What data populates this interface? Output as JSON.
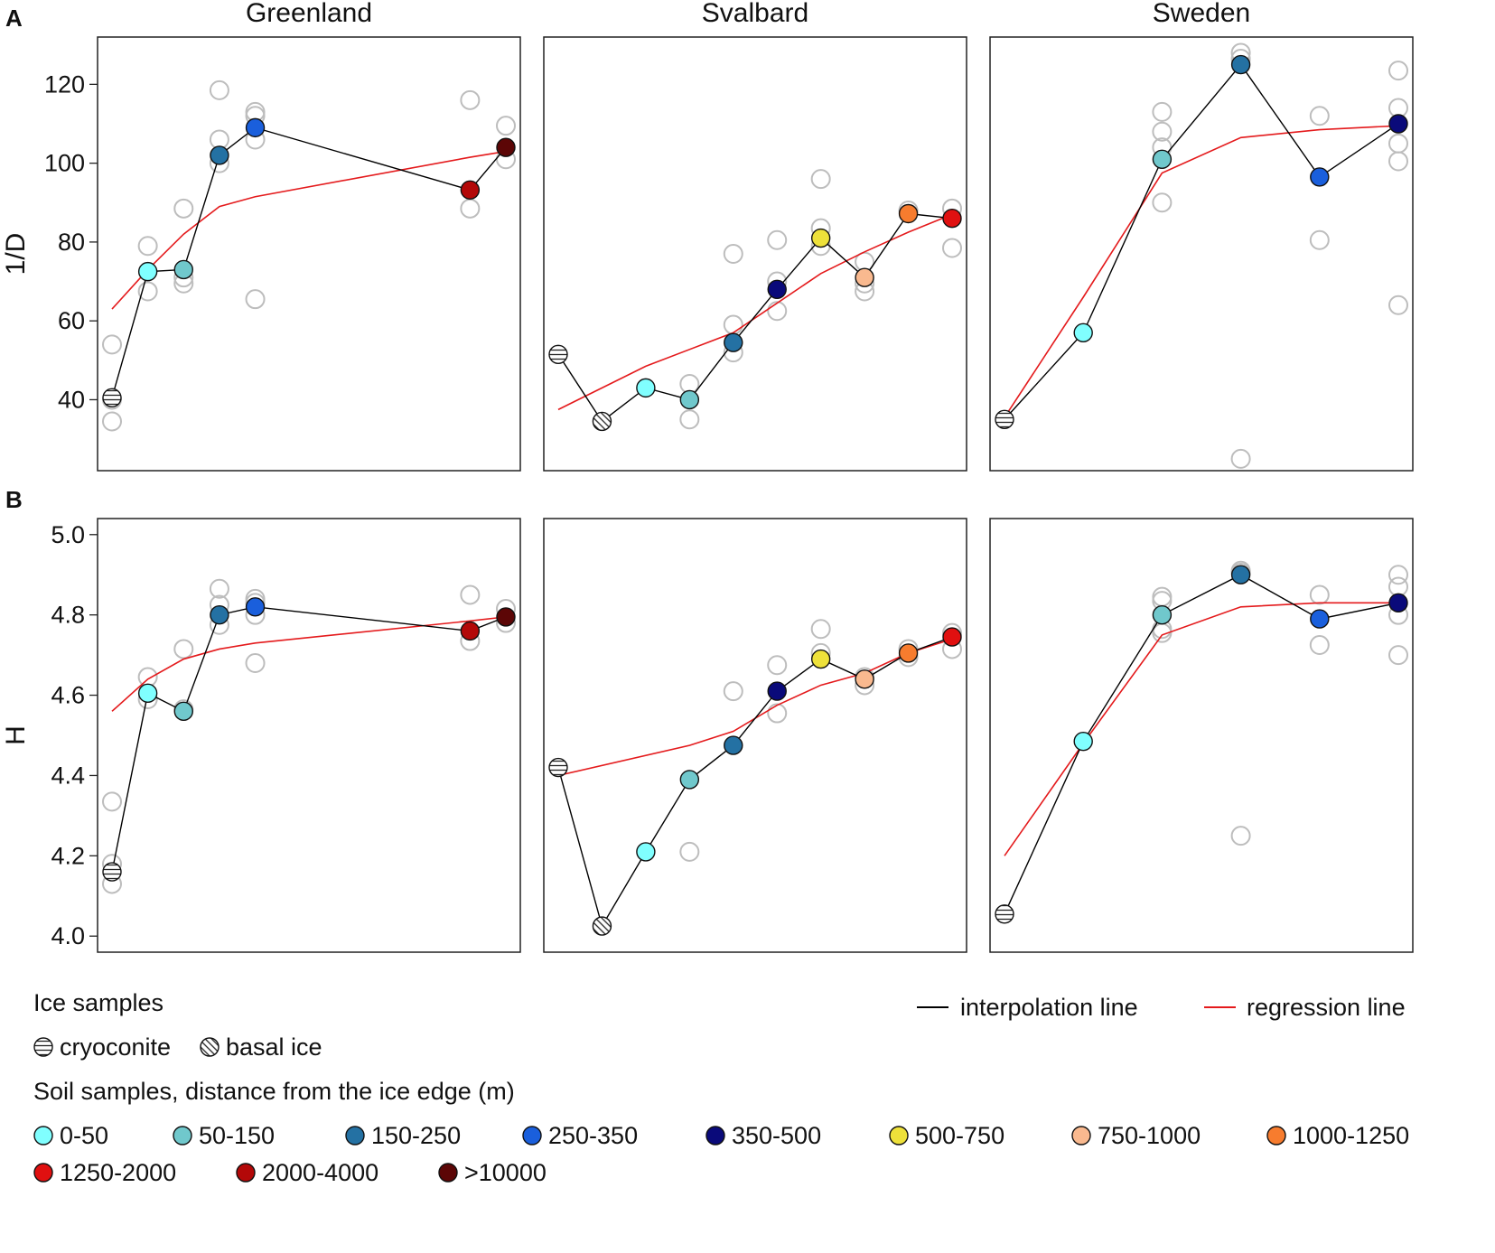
{
  "chart_data": {
    "type": "scatter",
    "title": "",
    "columns": [
      "Greenland",
      "Svalbard",
      "Sweden"
    ],
    "series_order": [
      "cryoconite",
      "basal ice",
      "0-50",
      "50-150",
      "150-250",
      "250-350",
      "350-500",
      "500-750",
      "750-1000",
      "1000-1250",
      "1250-2000",
      "2000-4000",
      ">10000"
    ],
    "colors": {
      "0-50": "#80ffff",
      "50-150": "#70c8cc",
      "150-250": "#2471a3",
      "250-350": "#1a5fdc",
      "350-500": "#0a0a7a",
      "500-750": "#eee13a",
      "750-1000": "#f9b98f",
      "1000-1250": "#f77c2e",
      "1250-2000": "#e01010",
      "2000-4000": "#b30808",
      ">10000": "#5c0606"
    },
    "line_colors": {
      "interpolation": "#000000",
      "regression": "#e41a1c",
      "replicate": "#bdbdbd"
    },
    "rows": [
      {
        "letter": "A",
        "ylabel": "1/D",
        "ylim": [
          22,
          132
        ],
        "yticks": [
          40,
          60,
          80,
          100,
          120
        ],
        "panels": [
          {
            "site": "Greenland",
            "means": [
              {
                "cat": "cryoconite",
                "x": 0,
                "y": 40.5
              },
              {
                "cat": "0-50",
                "x": 1,
                "y": 72.5
              },
              {
                "cat": "50-150",
                "x": 2,
                "y": 73
              },
              {
                "cat": "150-250",
                "x": 3,
                "y": 102
              },
              {
                "cat": "250-350",
                "x": 4,
                "y": 109
              },
              {
                "cat": "2000-4000",
                "x": 10,
                "y": 93.2
              },
              {
                "cat": ">10000",
                "x": 11,
                "y": 104
              }
            ],
            "replicates": [
              {
                "x": 0,
                "y": 54
              },
              {
                "x": 0,
                "y": 40
              },
              {
                "x": 0,
                "y": 34.5
              },
              {
                "x": 1,
                "y": 79
              },
              {
                "x": 1,
                "y": 67.5
              },
              {
                "x": 2,
                "y": 88.5
              },
              {
                "x": 2,
                "y": 71
              },
              {
                "x": 2,
                "y": 69.5
              },
              {
                "x": 3,
                "y": 118.5
              },
              {
                "x": 3,
                "y": 106
              },
              {
                "x": 3,
                "y": 100
              },
              {
                "x": 4,
                "y": 113
              },
              {
                "x": 4,
                "y": 112
              },
              {
                "x": 4,
                "y": 106
              },
              {
                "x": 4,
                "y": 65.5
              },
              {
                "x": 10,
                "y": 116
              },
              {
                "x": 10,
                "y": 88.5
              },
              {
                "x": 11,
                "y": 109.5
              },
              {
                "x": 11,
                "y": 101
              }
            ],
            "regression": [
              [
                0,
                63
              ],
              [
                1,
                73
              ],
              [
                2,
                82
              ],
              [
                3,
                89
              ],
              [
                4,
                91.5
              ],
              [
                10,
                101.5
              ],
              [
                11,
                103
              ]
            ]
          },
          {
            "site": "Svalbard",
            "means": [
              {
                "cat": "cryoconite",
                "x": 0,
                "y": 51.5
              },
              {
                "cat": "basal ice",
                "x": 1,
                "y": 34.5
              },
              {
                "cat": "0-50",
                "x": 2,
                "y": 43
              },
              {
                "cat": "50-150",
                "x": 3,
                "y": 40
              },
              {
                "cat": "150-250",
                "x": 4,
                "y": 54.5
              },
              {
                "cat": "350-500",
                "x": 5,
                "y": 68
              },
              {
                "cat": "500-750",
                "x": 6,
                "y": 81
              },
              {
                "cat": "750-1000",
                "x": 7,
                "y": 71
              },
              {
                "cat": "1000-1250",
                "x": 8,
                "y": 87.2
              },
              {
                "cat": "1250-2000",
                "x": 9,
                "y": 86
              }
            ],
            "replicates": [
              {
                "x": 3,
                "y": 44
              },
              {
                "x": 3,
                "y": 35
              },
              {
                "x": 4,
                "y": 77
              },
              {
                "x": 4,
                "y": 59
              },
              {
                "x": 4,
                "y": 52
              },
              {
                "x": 5,
                "y": 80.5
              },
              {
                "x": 5,
                "y": 70
              },
              {
                "x": 5,
                "y": 62.5
              },
              {
                "x": 6,
                "y": 96
              },
              {
                "x": 6,
                "y": 83.5
              },
              {
                "x": 6,
                "y": 79
              },
              {
                "x": 7,
                "y": 75
              },
              {
                "x": 7,
                "y": 69.5
              },
              {
                "x": 7,
                "y": 67.5
              },
              {
                "x": 8,
                "y": 88
              },
              {
                "x": 9,
                "y": 88.5
              },
              {
                "x": 9,
                "y": 78.5
              }
            ],
            "regression": [
              [
                0,
                37.5
              ],
              [
                2,
                48.5
              ],
              [
                4,
                57
              ],
              [
                5,
                64.5
              ],
              [
                6,
                72
              ],
              [
                7,
                77.5
              ],
              [
                8,
                82.5
              ],
              [
                9,
                87
              ]
            ]
          },
          {
            "site": "Sweden",
            "means": [
              {
                "cat": "cryoconite",
                "x": 0,
                "y": 35
              },
              {
                "cat": "0-50",
                "x": 1,
                "y": 57
              },
              {
                "cat": "50-150",
                "x": 2,
                "y": 101
              },
              {
                "cat": "150-250",
                "x": 3,
                "y": 125
              },
              {
                "cat": "250-350",
                "x": 4,
                "y": 96.5
              },
              {
                "cat": "350-500",
                "x": 5,
                "y": 110
              }
            ],
            "replicates": [
              {
                "x": 2,
                "y": 113
              },
              {
                "x": 2,
                "y": 108
              },
              {
                "x": 2,
                "y": 104
              },
              {
                "x": 2,
                "y": 90
              },
              {
                "x": 3,
                "y": 128
              },
              {
                "x": 3,
                "y": 126.5
              },
              {
                "x": 3,
                "y": 25
              },
              {
                "x": 4,
                "y": 112
              },
              {
                "x": 4,
                "y": 80.5
              },
              {
                "x": 5,
                "y": 123.5
              },
              {
                "x": 5,
                "y": 114
              },
              {
                "x": 5,
                "y": 105
              },
              {
                "x": 5,
                "y": 100.5
              },
              {
                "x": 5,
                "y": 64
              }
            ],
            "regression": [
              [
                0,
                35.5
              ],
              [
                1,
                66
              ],
              [
                2,
                97.5
              ],
              [
                3,
                106.5
              ],
              [
                4,
                108.5
              ],
              [
                5,
                109.5
              ]
            ]
          }
        ]
      },
      {
        "letter": "B",
        "ylabel": "H",
        "ylim": [
          3.96,
          5.04
        ],
        "yticks": [
          4.0,
          4.2,
          4.4,
          4.6,
          4.8,
          5.0
        ],
        "panels": [
          {
            "site": "Greenland",
            "means": [
              {
                "cat": "cryoconite",
                "x": 0,
                "y": 4.16
              },
              {
                "cat": "0-50",
                "x": 1,
                "y": 4.605
              },
              {
                "cat": "50-150",
                "x": 2,
                "y": 4.56
              },
              {
                "cat": "150-250",
                "x": 3,
                "y": 4.8
              },
              {
                "cat": "250-350",
                "x": 4,
                "y": 4.82
              },
              {
                "cat": "2000-4000",
                "x": 10,
                "y": 4.76
              },
              {
                "cat": ">10000",
                "x": 11,
                "y": 4.795
              }
            ],
            "replicates": [
              {
                "x": 0,
                "y": 4.335
              },
              {
                "x": 0,
                "y": 4.18
              },
              {
                "x": 0,
                "y": 4.13
              },
              {
                "x": 1,
                "y": 4.645
              },
              {
                "x": 1,
                "y": 4.59
              },
              {
                "x": 2,
                "y": 4.715
              },
              {
                "x": 2,
                "y": 4.565
              },
              {
                "x": 3,
                "y": 4.865
              },
              {
                "x": 3,
                "y": 4.825
              },
              {
                "x": 3,
                "y": 4.775
              },
              {
                "x": 4,
                "y": 4.84
              },
              {
                "x": 4,
                "y": 4.83
              },
              {
                "x": 4,
                "y": 4.8
              },
              {
                "x": 4,
                "y": 4.68
              },
              {
                "x": 10,
                "y": 4.85
              },
              {
                "x": 10,
                "y": 4.735
              },
              {
                "x": 11,
                "y": 4.815
              },
              {
                "x": 11,
                "y": 4.78
              }
            ],
            "regression": [
              [
                0,
                4.56
              ],
              [
                1,
                4.64
              ],
              [
                2,
                4.69
              ],
              [
                3,
                4.715
              ],
              [
                4,
                4.73
              ],
              [
                10,
                4.785
              ],
              [
                11,
                4.795
              ]
            ]
          },
          {
            "site": "Svalbard",
            "means": [
              {
                "cat": "cryoconite",
                "x": 0,
                "y": 4.42
              },
              {
                "cat": "basal ice",
                "x": 1,
                "y": 4.025
              },
              {
                "cat": "0-50",
                "x": 2,
                "y": 4.21
              },
              {
                "cat": "50-150",
                "x": 3,
                "y": 4.39
              },
              {
                "cat": "150-250",
                "x": 4,
                "y": 4.475
              },
              {
                "cat": "350-500",
                "x": 5,
                "y": 4.61
              },
              {
                "cat": "500-750",
                "x": 6,
                "y": 4.69
              },
              {
                "cat": "750-1000",
                "x": 7,
                "y": 4.64
              },
              {
                "cat": "1000-1250",
                "x": 8,
                "y": 4.705
              },
              {
                "cat": "1250-2000",
                "x": 9,
                "y": 4.745
              }
            ],
            "replicates": [
              {
                "x": 3,
                "y": 4.21
              },
              {
                "x": 4,
                "y": 4.61
              },
              {
                "x": 5,
                "y": 4.675
              },
              {
                "x": 5,
                "y": 4.555
              },
              {
                "x": 6,
                "y": 4.765
              },
              {
                "x": 6,
                "y": 4.705
              },
              {
                "x": 7,
                "y": 4.645
              },
              {
                "x": 7,
                "y": 4.625
              },
              {
                "x": 8,
                "y": 4.715
              },
              {
                "x": 8,
                "y": 4.695
              },
              {
                "x": 9,
                "y": 4.755
              },
              {
                "x": 9,
                "y": 4.715
              }
            ],
            "regression": [
              [
                0,
                4.4
              ],
              [
                3,
                4.475
              ],
              [
                4,
                4.51
              ],
              [
                5,
                4.575
              ],
              [
                6,
                4.625
              ],
              [
                7,
                4.655
              ],
              [
                8,
                4.705
              ],
              [
                9,
                4.74
              ]
            ]
          },
          {
            "site": "Sweden",
            "means": [
              {
                "cat": "cryoconite",
                "x": 0,
                "y": 4.055
              },
              {
                "cat": "0-50",
                "x": 1,
                "y": 4.485
              },
              {
                "cat": "50-150",
                "x": 2,
                "y": 4.8
              },
              {
                "cat": "150-250",
                "x": 3,
                "y": 4.9
              },
              {
                "cat": "250-350",
                "x": 4,
                "y": 4.79
              },
              {
                "cat": "350-500",
                "x": 5,
                "y": 4.83
              }
            ],
            "replicates": [
              {
                "x": 2,
                "y": 4.845
              },
              {
                "x": 2,
                "y": 4.835
              },
              {
                "x": 2,
                "y": 4.765
              },
              {
                "x": 2,
                "y": 4.755
              },
              {
                "x": 3,
                "y": 4.91
              },
              {
                "x": 3,
                "y": 4.905
              },
              {
                "x": 3,
                "y": 4.25
              },
              {
                "x": 4,
                "y": 4.85
              },
              {
                "x": 4,
                "y": 4.725
              },
              {
                "x": 5,
                "y": 4.9
              },
              {
                "x": 5,
                "y": 4.87
              },
              {
                "x": 5,
                "y": 4.8
              },
              {
                "x": 5,
                "y": 4.7
              }
            ],
            "regression": [
              [
                0,
                4.2
              ],
              [
                1,
                4.48
              ],
              [
                2,
                4.75
              ],
              [
                3,
                4.82
              ],
              [
                4,
                4.83
              ],
              [
                5,
                4.83
              ]
            ]
          }
        ]
      }
    ]
  },
  "legend": {
    "lines": [
      {
        "key": "interpolation",
        "label": "interpolation line"
      },
      {
        "key": "regression",
        "label": "regression line"
      }
    ],
    "ice_title": "Ice samples",
    "ice_items": [
      {
        "cat": "cryoconite",
        "label": "cryoconite"
      },
      {
        "cat": "basal ice",
        "label": "basal ice"
      }
    ],
    "soil_title": "Soil samples, distance from the ice edge (m)",
    "soil_items": [
      {
        "cat": "0-50",
        "label": "0-50"
      },
      {
        "cat": "50-150",
        "label": "50-150"
      },
      {
        "cat": "150-250",
        "label": "150-250"
      },
      {
        "cat": "250-350",
        "label": "250-350"
      },
      {
        "cat": "350-500",
        "label": "350-500"
      },
      {
        "cat": "500-750",
        "label": "500-750"
      },
      {
        "cat": "750-1000",
        "label": "750-1000"
      },
      {
        "cat": "1000-1250",
        "label": "1000-1250"
      },
      {
        "cat": "1250-2000",
        "label": "1250-2000"
      },
      {
        "cat": "2000-4000",
        "label": "2000-4000"
      },
      {
        "cat": ">10000",
        "label": ">10000"
      }
    ]
  }
}
